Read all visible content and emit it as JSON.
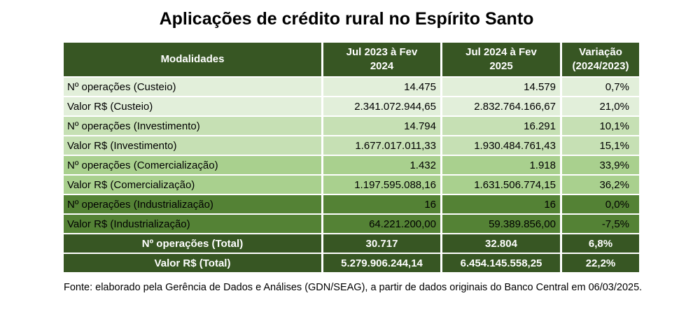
{
  "chart_data": {
    "type": "table",
    "title": "Aplicações de crédito rural no Espírito Santo",
    "columns": [
      "Modalidades",
      "Jul 2023 à Fev 2024",
      "Jul 2024 à Fev 2025",
      "Variação (2024/2023)"
    ],
    "header_lines": {
      "modalidades": "Modalidades",
      "period1": [
        "Jul 2023 à Fev",
        "2024"
      ],
      "period2": [
        "Jul 2024 à Fev",
        "2025"
      ],
      "variacao": [
        "Variação",
        "(2024/2023)"
      ]
    },
    "rows": [
      {
        "label": "Nº operações (Custeio)",
        "period1": "14.475",
        "period2": "14.579",
        "variacao": "0,7%",
        "group": "custeio"
      },
      {
        "label": "Valor R$ (Custeio)",
        "period1": "2.341.072.944,65",
        "period2": "2.832.764.166,67",
        "variacao": "21,0%",
        "group": "custeio"
      },
      {
        "label": "Nº operações (Investimento)",
        "period1": "14.794",
        "period2": "16.291",
        "variacao": "10,1%",
        "group": "investimento"
      },
      {
        "label": "Valor R$ (Investimento)",
        "period1": "1.677.017.011,33",
        "period2": "1.930.484.761,43",
        "variacao": "15,1%",
        "group": "investimento"
      },
      {
        "label": "Nº operações (Comercialização)",
        "period1": "1.432",
        "period2": "1.918",
        "variacao": "33,9%",
        "group": "comercializacao"
      },
      {
        "label": "Valor R$ (Comercialização)",
        "period1": "1.197.595.088,16",
        "period2": "1.631.506.774,15",
        "variacao": "36,2%",
        "group": "comercializacao"
      },
      {
        "label": "Nº operações (Industrialização)",
        "period1": "16",
        "period2": "16",
        "variacao": "0,0%",
        "group": "industrializacao"
      },
      {
        "label": "Valor R$ (Industrialização)",
        "period1": "64.221.200,00",
        "period2": "59.389.856,00",
        "variacao": "-7,5%",
        "group": "industrializacao"
      }
    ],
    "totals": [
      {
        "label": "Nº operações (Total)",
        "period1": "30.717",
        "period2": "32.804",
        "variacao": "6,8%"
      },
      {
        "label": "Valor R$ (Total)",
        "period1": "5.279.906.244,14",
        "period2": "6.454.145.558,25",
        "variacao": "22,2%"
      }
    ],
    "source": "Fonte: elaborado pela Gerência de Dados e Análises (GDN/SEAG), a partir de dados originais do Banco Central em 06/03/2025."
  },
  "source_note": "Fonte: elaborado pela Gerência de Dados e Análises (GDN/SEAG), a partir de dados originais do Banco Central em 06/03/2025.",
  "colors": {
    "header_bg": "#375623",
    "total_bg": "#375623",
    "band_custeio": "#E2EFDA",
    "band_investimento": "#C6E0B4",
    "band_comercializacao": "#A9D08E",
    "band_industrializacao": "#548235",
    "header_text": "#FFFFFF",
    "body_text": "#000000"
  }
}
